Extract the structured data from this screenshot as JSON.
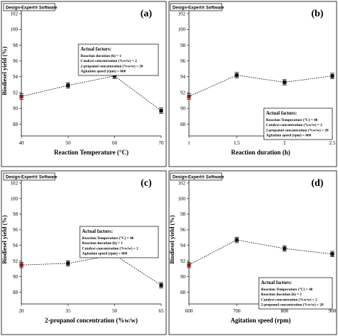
{
  "software_label": "Design-Expert® Software",
  "chart_data": [
    {
      "panel": "(a)",
      "type": "line",
      "xlabel": "Reaction Temperature (°C)",
      "ylabel": "Biodiesel yield (%)",
      "xlim": [
        40,
        70
      ],
      "ylim": [
        86.5,
        103
      ],
      "x_ticks": [
        40,
        50,
        60,
        70
      ],
      "y_ticks": [
        88,
        90,
        92,
        94,
        96,
        98,
        100,
        102
      ],
      "x": [
        40,
        50,
        60,
        70
      ],
      "y": [
        91.5,
        92.9,
        94.1,
        89.7
      ],
      "error": [
        0.35,
        0.35,
        0.35,
        0.35
      ],
      "highlight_index": 0,
      "highlight_color": "#8b1a1a",
      "factors": {
        "title": "Actual factors:",
        "lines": [
          "Reaction duration (h) = 1",
          "Catalyst concentration (%w/w) = 2",
          "2-propanol concentration (%w/w) = 20",
          "Agitation speed (rpm) = 600"
        ]
      }
    },
    {
      "panel": "(b)",
      "type": "line",
      "xlabel": "Reaction duration (h)",
      "ylabel": "",
      "xlim": [
        1,
        2.5
      ],
      "ylim": [
        86.5,
        103
      ],
      "x_ticks": [
        1,
        1.5,
        2,
        2.5
      ],
      "y_ticks": [
        88,
        90,
        92,
        94,
        96,
        98,
        100,
        102
      ],
      "x": [
        1,
        1.5,
        2,
        2.5
      ],
      "y": [
        91.5,
        94.2,
        93.3,
        94.1
      ],
      "error": [
        0.35,
        0.35,
        0.35,
        0.35
      ],
      "highlight_index": 0,
      "highlight_color": "#8b1a1a",
      "factors": {
        "title": "Actual factors:",
        "lines": [
          "Reaction Temperature (°C) = 40",
          "Catalyst concentration (%w/w) = 2",
          "2-propanol concentration (%w/w) = 20",
          "Agitation speed (rpm) = 600"
        ]
      }
    },
    {
      "panel": "(c)",
      "type": "line",
      "xlabel": "2-propanol concentration (%w/w)",
      "ylabel": "Biodiesel yield (%)",
      "xlim": [
        20,
        65
      ],
      "ylim": [
        86.5,
        103
      ],
      "x_ticks": [
        20,
        35,
        50,
        65
      ],
      "y_ticks": [
        88,
        90,
        92,
        94,
        96,
        98,
        100,
        102
      ],
      "x": [
        20,
        35,
        50,
        65
      ],
      "y": [
        91.5,
        91.7,
        92.8,
        88.9
      ],
      "error": [
        0.35,
        0.35,
        0.35,
        0.35
      ],
      "highlight_index": 0,
      "highlight_color": "#8b1a1a",
      "factors": {
        "title": "Actual factors:",
        "lines": [
          "Reaction Temperature (°C) = 40",
          "Reaction duration (h) = 1",
          "Catalyst concentration (%w/w) = 2",
          "Agitation speed (rpm) = 600"
        ]
      }
    },
    {
      "panel": "(d)",
      "type": "line",
      "xlabel": "Agitation speed (rpm)",
      "ylabel": "Biodiesel yield (%)",
      "xlim": [
        600,
        900
      ],
      "ylim": [
        86.5,
        103
      ],
      "x_ticks": [
        600,
        700,
        800,
        900
      ],
      "y_ticks": [
        88,
        90,
        92,
        94,
        96,
        98,
        100,
        102
      ],
      "x": [
        600,
        700,
        800,
        900
      ],
      "y": [
        91.5,
        94.7,
        93.6,
        92.9
      ],
      "error": [
        0.35,
        0.35,
        0.35,
        0.35
      ],
      "highlight_index": 0,
      "highlight_color": "#8b1a1a",
      "factors": {
        "title": "Actual factors:",
        "lines": [
          "Reaction Temperature (°C) = 40",
          "Reaction duration (h) = 1",
          "Catalyst concentration (%w/w) = 2",
          "2-propanol concentration (%w/w) = 20"
        ]
      }
    }
  ]
}
